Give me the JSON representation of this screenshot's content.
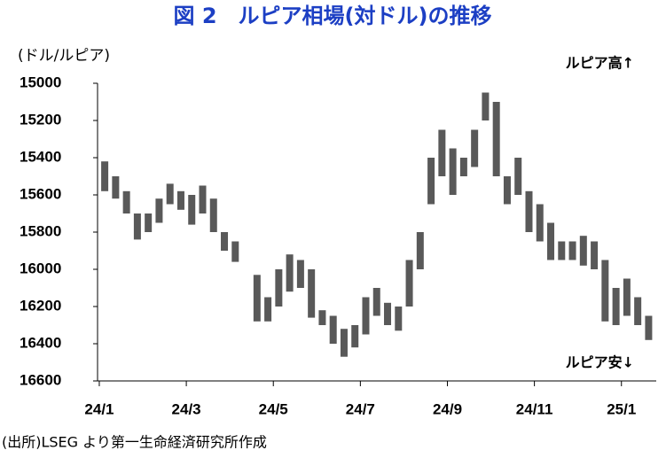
{
  "chart_data": {
    "type": "range",
    "title": "図 2　ルピア相場(対ドル)の推移",
    "y_label": "(ドル/ルピア)",
    "annotation_top": "ルピア高↑",
    "annotation_bottom": "ルピア安↓",
    "source": "(出所)LSEG より第一生命経済研究所作成",
    "color": "#595959",
    "y_inverted": true,
    "x": [
      0.125,
      0.375,
      0.625,
      0.875,
      1.125,
      1.375,
      1.625,
      1.875,
      2.125,
      2.375,
      2.625,
      2.875,
      3.125,
      3.625,
      3.875,
      4.125,
      4.375,
      4.625,
      4.875,
      5.125,
      5.375,
      5.625,
      5.875,
      6.125,
      6.375,
      6.625,
      6.875,
      7.125,
      7.375,
      7.625,
      7.875,
      8.125,
      8.375,
      8.625,
      8.875,
      9.125,
      9.375,
      9.625,
      9.875,
      10.125,
      10.375,
      10.625,
      10.875,
      11.125,
      11.375,
      11.625,
      11.875,
      12.125,
      12.375,
      12.625
    ],
    "low": [
      15420,
      15500,
      15580,
      15700,
      15700,
      15620,
      15540,
      15580,
      15600,
      15550,
      15620,
      15800,
      15850,
      16030,
      16150,
      16000,
      15920,
      15950,
      16000,
      16220,
      16250,
      16320,
      16300,
      16150,
      16100,
      16180,
      16200,
      15950,
      15800,
      15400,
      15250,
      15350,
      15400,
      15250,
      15050,
      15100,
      15500,
      15400,
      15580,
      15650,
      15750,
      15850,
      15850,
      15820,
      15850,
      15950,
      16100,
      16050,
      16150,
      16250
    ],
    "high": [
      15580,
      15620,
      15700,
      15840,
      15800,
      15750,
      15650,
      15680,
      15760,
      15700,
      15800,
      15900,
      15960,
      16280,
      16280,
      16200,
      16120,
      16100,
      16260,
      16300,
      16400,
      16470,
      16420,
      16350,
      16250,
      16300,
      16330,
      16200,
      16000,
      15650,
      15500,
      15600,
      15500,
      15450,
      15200,
      15500,
      15650,
      15600,
      15800,
      15850,
      15950,
      15950,
      15950,
      15980,
      16000,
      16280,
      16300,
      16250,
      16300,
      16380
    ],
    "xlim": [
      -0.04,
      12.8
    ],
    "xticks": [
      {
        "value": 0,
        "label": "24/1"
      },
      {
        "value": 2,
        "label": "24/3"
      },
      {
        "value": 4,
        "label": "24/5"
      },
      {
        "value": 6,
        "label": "24/7"
      },
      {
        "value": 8,
        "label": "24/9"
      },
      {
        "value": 10,
        "label": "24/11"
      },
      {
        "value": 12,
        "label": "25/1"
      }
    ],
    "ylim": [
      15000,
      16600
    ],
    "yticks": [
      15000,
      15200,
      15400,
      15600,
      15800,
      16000,
      16200,
      16400,
      16600
    ]
  }
}
